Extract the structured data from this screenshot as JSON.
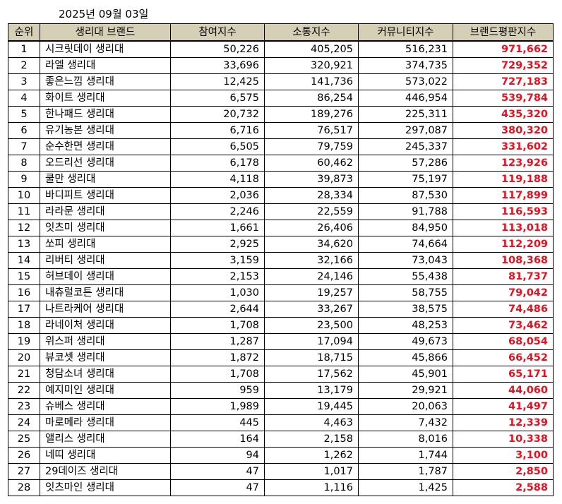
{
  "date": "2025년 09월 03일",
  "colors": {
    "header_bg": "#d5cfb5",
    "brand_index_text": "#e8101e"
  },
  "headers": [
    "순위",
    "생리대 브랜드",
    "참여지수",
    "소통지수",
    "커뮤니티지수",
    "브랜드평판지수"
  ],
  "rows": [
    {
      "rank": "1",
      "brand": "시크릿데이 생리대",
      "participation": "50,226",
      "communication": "405,205",
      "community": "516,231",
      "brand_index": "971,662"
    },
    {
      "rank": "2",
      "brand": "라엘 생리대",
      "participation": "33,696",
      "communication": "320,921",
      "community": "374,735",
      "brand_index": "729,352"
    },
    {
      "rank": "3",
      "brand": "좋은느낌 생리대",
      "participation": "12,425",
      "communication": "141,736",
      "community": "573,022",
      "brand_index": "727,183"
    },
    {
      "rank": "4",
      "brand": "화이트 생리대",
      "participation": "6,575",
      "communication": "86,254",
      "community": "446,954",
      "brand_index": "539,784"
    },
    {
      "rank": "5",
      "brand": "한나패드 생리대",
      "participation": "20,732",
      "communication": "189,276",
      "community": "225,311",
      "brand_index": "435,320"
    },
    {
      "rank": "6",
      "brand": "유기농본 생리대",
      "participation": "6,716",
      "communication": "76,517",
      "community": "297,087",
      "brand_index": "380,320"
    },
    {
      "rank": "7",
      "brand": "순수한면 생리대",
      "participation": "6,505",
      "communication": "79,759",
      "community": "245,337",
      "brand_index": "331,602"
    },
    {
      "rank": "8",
      "brand": "오드리선 생리대",
      "participation": "6,178",
      "communication": "60,462",
      "community": "57,286",
      "brand_index": "123,926"
    },
    {
      "rank": "9",
      "brand": "쿨만 생리대",
      "participation": "4,118",
      "communication": "39,873",
      "community": "75,197",
      "brand_index": "119,188"
    },
    {
      "rank": "10",
      "brand": "바디피트 생리대",
      "participation": "2,036",
      "communication": "28,334",
      "community": "87,530",
      "brand_index": "117,899"
    },
    {
      "rank": "11",
      "brand": "라라문 생리대",
      "participation": "2,246",
      "communication": "22,559",
      "community": "91,788",
      "brand_index": "116,593"
    },
    {
      "rank": "12",
      "brand": "잇츠미 생리대",
      "participation": "1,661",
      "communication": "26,406",
      "community": "84,950",
      "brand_index": "113,018"
    },
    {
      "rank": "13",
      "brand": "쏘피 생리대",
      "participation": "2,925",
      "communication": "34,620",
      "community": "74,664",
      "brand_index": "112,209"
    },
    {
      "rank": "14",
      "brand": "리버티 생리대",
      "participation": "3,159",
      "communication": "32,166",
      "community": "73,043",
      "brand_index": "108,368"
    },
    {
      "rank": "15",
      "brand": "허브데이 생리대",
      "participation": "2,153",
      "communication": "24,146",
      "community": "55,438",
      "brand_index": "81,737"
    },
    {
      "rank": "16",
      "brand": "내츄럴코튼 생리대",
      "participation": "1,030",
      "communication": "19,257",
      "community": "58,755",
      "brand_index": "79,042"
    },
    {
      "rank": "17",
      "brand": "나트라케어 생리대",
      "participation": "2,644",
      "communication": "33,267",
      "community": "38,575",
      "brand_index": "74,486"
    },
    {
      "rank": "18",
      "brand": "라네이처 생리대",
      "participation": "1,708",
      "communication": "23,500",
      "community": "48,253",
      "brand_index": "73,462"
    },
    {
      "rank": "19",
      "brand": "위스퍼 생리대",
      "participation": "1,287",
      "communication": "17,094",
      "community": "49,673",
      "brand_index": "68,054"
    },
    {
      "rank": "20",
      "brand": "뷰코셋 생리대",
      "participation": "1,872",
      "communication": "18,715",
      "community": "45,866",
      "brand_index": "66,452"
    },
    {
      "rank": "21",
      "brand": "청담소녀 생리대",
      "participation": "1,708",
      "communication": "17,562",
      "community": "45,901",
      "brand_index": "65,171"
    },
    {
      "rank": "22",
      "brand": "예지미인 생리대",
      "participation": "959",
      "communication": "13,179",
      "community": "29,921",
      "brand_index": "44,060"
    },
    {
      "rank": "23",
      "brand": "슈베스 생리대",
      "participation": "1,989",
      "communication": "19,445",
      "community": "20,063",
      "brand_index": "41,497"
    },
    {
      "rank": "24",
      "brand": "마로메라 생리대",
      "participation": "445",
      "communication": "4,463",
      "community": "7,432",
      "brand_index": "12,339"
    },
    {
      "rank": "25",
      "brand": "앨리스 생리대",
      "participation": "164",
      "communication": "2,158",
      "community": "8,016",
      "brand_index": "10,338"
    },
    {
      "rank": "26",
      "brand": "네띠 생리대",
      "participation": "94",
      "communication": "1,262",
      "community": "1,744",
      "brand_index": "3,100"
    },
    {
      "rank": "27",
      "brand": "29데이즈 생리대",
      "participation": "47",
      "communication": "1,017",
      "community": "1,787",
      "brand_index": "2,850"
    },
    {
      "rank": "28",
      "brand": "잇츠마인 생리대",
      "participation": "47",
      "communication": "1,116",
      "community": "1,425",
      "brand_index": "2,588"
    }
  ]
}
